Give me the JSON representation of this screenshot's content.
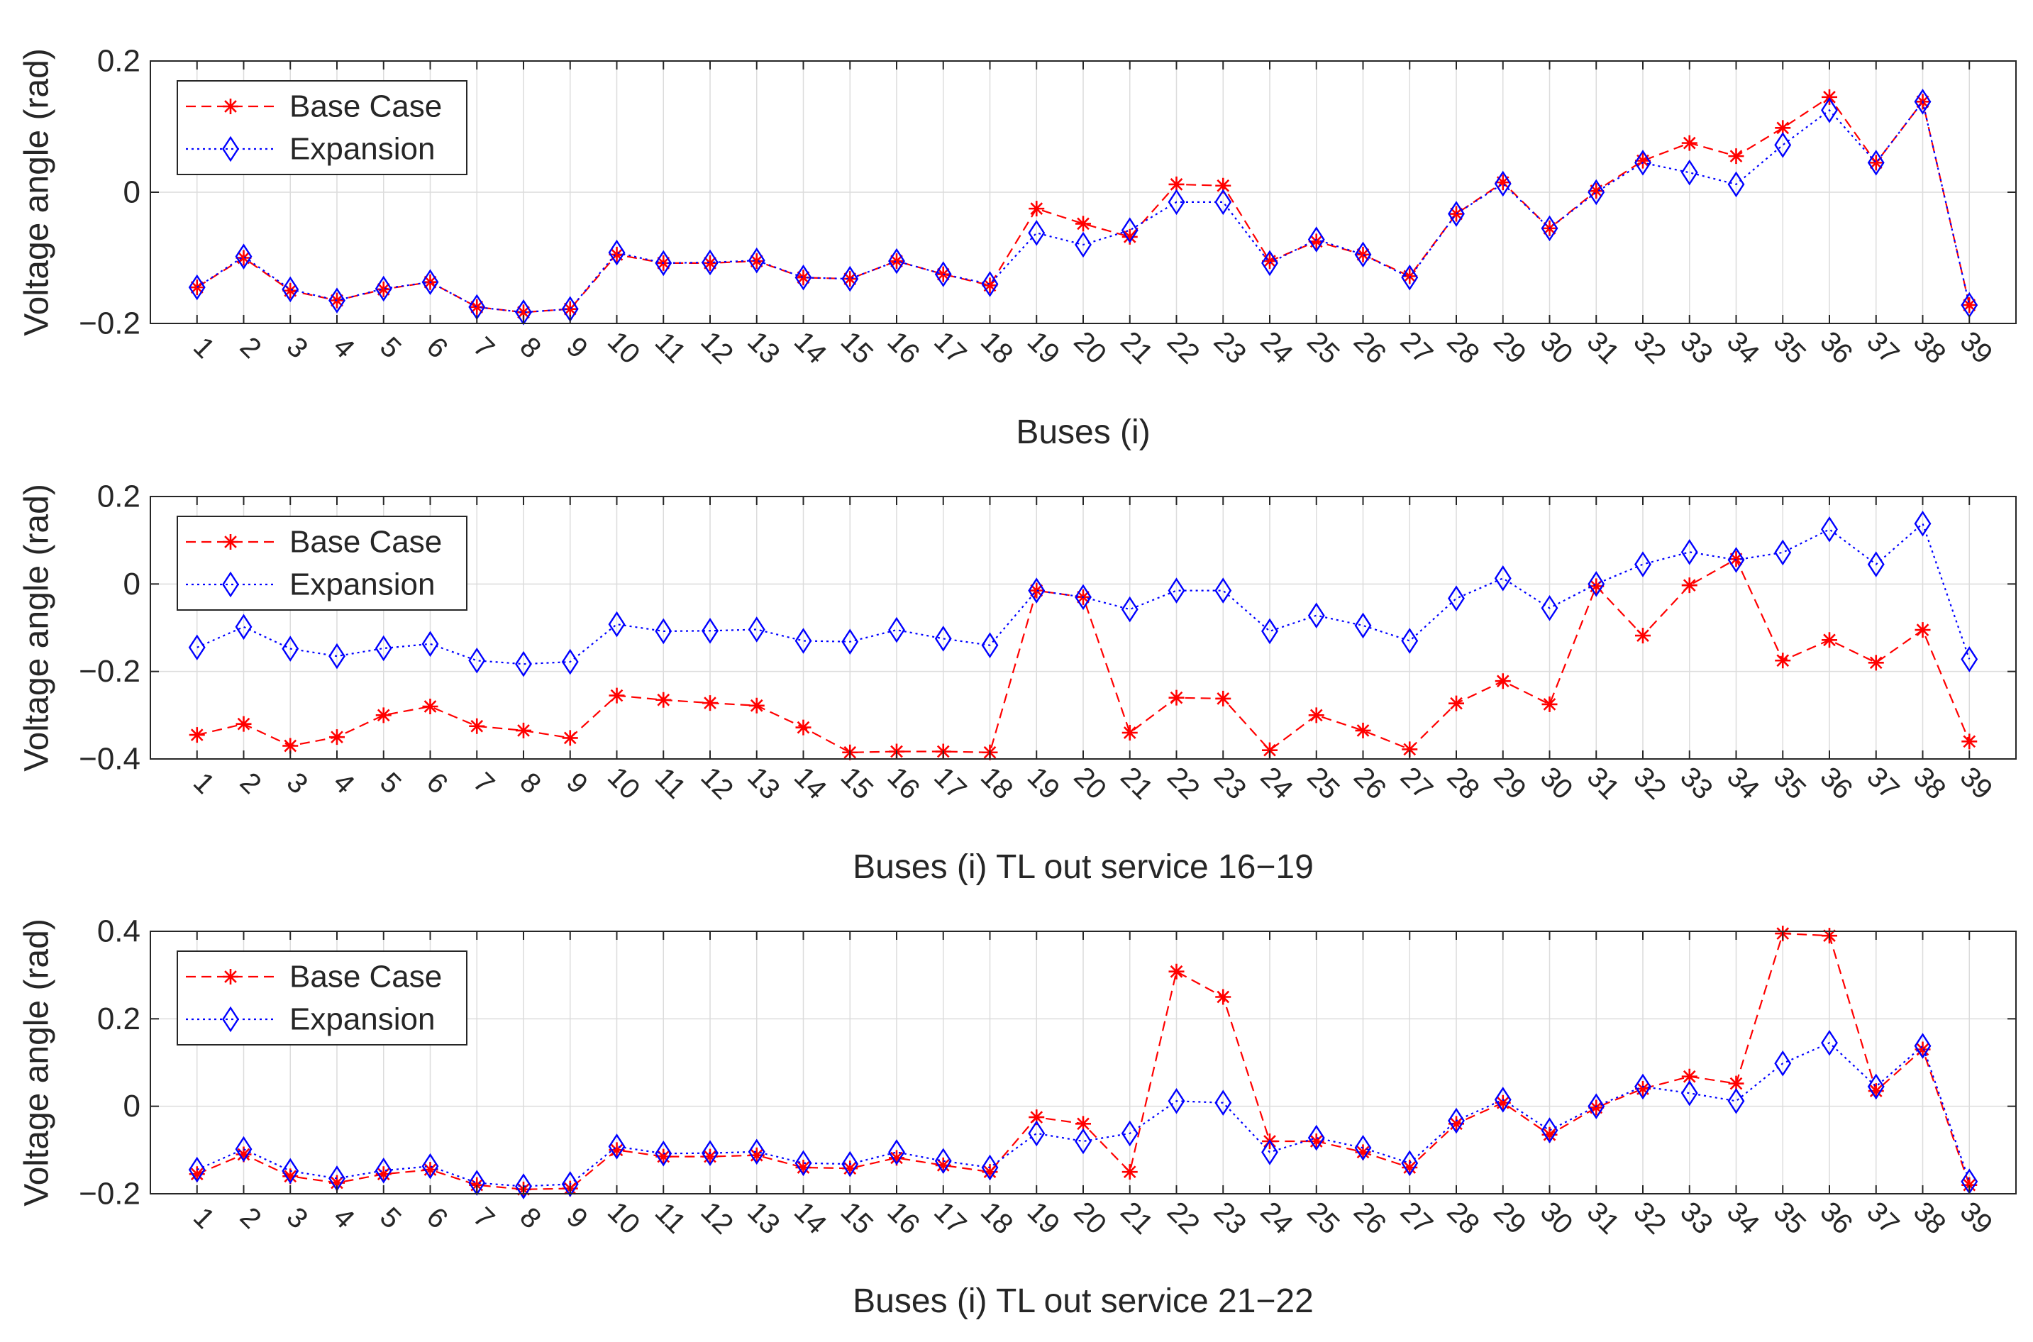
{
  "figure": {
    "legend_labels": [
      "Base Case",
      "Expansion"
    ],
    "colors": {
      "base": "#ff0000",
      "expansion": "#0000ff",
      "axis": "#262626",
      "grid": "#dcdcdc"
    }
  },
  "chart_data": [
    {
      "type": "line",
      "title": "",
      "xlabel": "Buses (i)",
      "ylabel": "Voltage angle (rad)",
      "ylim": [
        -0.2,
        0.2
      ],
      "yticks": [
        "-0.2",
        "0",
        "0.2"
      ],
      "ytick_values": [
        -0.2,
        0,
        0.2
      ],
      "grid": true,
      "legend_position": "top-left",
      "categories": [
        "1",
        "2",
        "3",
        "4",
        "5",
        "6",
        "7",
        "8",
        "9",
        "10",
        "11",
        "12",
        "13",
        "14",
        "15",
        "16",
        "17",
        "18",
        "19",
        "20",
        "21",
        "22",
        "23",
        "24",
        "25",
        "26",
        "27",
        "28",
        "29",
        "30",
        "31",
        "32",
        "33",
        "34",
        "35",
        "36",
        "37",
        "38",
        "39"
      ],
      "series": [
        {
          "name": "Base Case",
          "marker": "asterisk",
          "style": "dashed",
          "values": [
            -0.145,
            -0.1,
            -0.15,
            -0.165,
            -0.148,
            -0.137,
            -0.175,
            -0.183,
            -0.178,
            -0.095,
            -0.108,
            -0.108,
            -0.105,
            -0.13,
            -0.132,
            -0.105,
            -0.125,
            -0.142,
            -0.025,
            -0.048,
            -0.068,
            0.012,
            0.01,
            -0.105,
            -0.075,
            -0.095,
            -0.128,
            -0.033,
            0.015,
            -0.055,
            0.002,
            0.048,
            0.075,
            0.055,
            0.098,
            0.145,
            0.045,
            0.138,
            -0.172
          ]
        },
        {
          "name": "Expansion",
          "marker": "diamond",
          "style": "dotted",
          "values": [
            -0.145,
            -0.098,
            -0.148,
            -0.165,
            -0.147,
            -0.137,
            -0.175,
            -0.183,
            -0.178,
            -0.092,
            -0.108,
            -0.107,
            -0.104,
            -0.13,
            -0.132,
            -0.105,
            -0.125,
            -0.14,
            -0.062,
            -0.08,
            -0.058,
            -0.015,
            -0.015,
            -0.108,
            -0.072,
            -0.095,
            -0.13,
            -0.033,
            0.013,
            -0.055,
            0.0,
            0.045,
            0.03,
            0.012,
            0.072,
            0.125,
            0.045,
            0.138,
            -0.172
          ]
        }
      ]
    },
    {
      "type": "line",
      "title": "",
      "xlabel": "Buses (i) TL out service 16−19",
      "ylabel": "Voltage angle (rad)",
      "ylim": [
        -0.4,
        0.2
      ],
      "yticks": [
        "-0.4",
        "-0.2",
        "0",
        "0.2"
      ],
      "ytick_values": [
        -0.4,
        -0.2,
        0,
        0.2
      ],
      "grid": true,
      "legend_position": "top-left",
      "categories": [
        "1",
        "2",
        "3",
        "4",
        "5",
        "6",
        "7",
        "8",
        "9",
        "10",
        "11",
        "12",
        "13",
        "14",
        "15",
        "16",
        "17",
        "18",
        "19",
        "20",
        "21",
        "22",
        "23",
        "24",
        "25",
        "26",
        "27",
        "28",
        "29",
        "30",
        "31",
        "32",
        "33",
        "34",
        "35",
        "36",
        "37",
        "38",
        "39"
      ],
      "series": [
        {
          "name": "Base Case",
          "marker": "asterisk",
          "style": "dashed",
          "values": [
            -0.345,
            -0.32,
            -0.37,
            -0.35,
            -0.3,
            -0.28,
            -0.325,
            -0.335,
            -0.352,
            -0.255,
            -0.265,
            -0.272,
            -0.278,
            -0.328,
            -0.385,
            -0.383,
            -0.383,
            -0.385,
            -0.015,
            -0.03,
            -0.34,
            -0.26,
            -0.262,
            -0.38,
            -0.3,
            -0.335,
            -0.378,
            -0.273,
            -0.222,
            -0.275,
            -0.005,
            -0.118,
            -0.003,
            0.057,
            -0.175,
            -0.128,
            -0.18,
            -0.105,
            -0.36
          ]
        },
        {
          "name": "Expansion",
          "marker": "diamond",
          "style": "dotted",
          "values": [
            -0.145,
            -0.098,
            -0.148,
            -0.165,
            -0.147,
            -0.137,
            -0.175,
            -0.183,
            -0.178,
            -0.092,
            -0.108,
            -0.107,
            -0.104,
            -0.13,
            -0.132,
            -0.105,
            -0.125,
            -0.14,
            -0.015,
            -0.03,
            -0.058,
            -0.015,
            -0.015,
            -0.108,
            -0.072,
            -0.095,
            -0.13,
            -0.033,
            0.013,
            -0.055,
            0.0,
            0.045,
            0.073,
            0.055,
            0.072,
            0.125,
            0.045,
            0.138,
            -0.172
          ]
        }
      ]
    },
    {
      "type": "line",
      "title": "",
      "xlabel": "Buses (i) TL out service 21−22",
      "ylabel": "Voltage angle (rad)",
      "ylim": [
        -0.2,
        0.4
      ],
      "yticks": [
        "-0.2",
        "0",
        "0.2",
        "0.4"
      ],
      "ytick_values": [
        -0.2,
        0,
        0.2,
        0.4
      ],
      "grid": true,
      "legend_position": "top-left",
      "categories": [
        "1",
        "2",
        "3",
        "4",
        "5",
        "6",
        "7",
        "8",
        "9",
        "10",
        "11",
        "12",
        "13",
        "14",
        "15",
        "16",
        "17",
        "18",
        "19",
        "20",
        "21",
        "22",
        "23",
        "24",
        "25",
        "26",
        "27",
        "28",
        "29",
        "30",
        "31",
        "32",
        "33",
        "34",
        "35",
        "36",
        "37",
        "38",
        "39"
      ],
      "series": [
        {
          "name": "Base Case",
          "marker": "asterisk",
          "style": "dashed",
          "values": [
            -0.155,
            -0.11,
            -0.16,
            -0.175,
            -0.155,
            -0.145,
            -0.18,
            -0.19,
            -0.188,
            -0.1,
            -0.115,
            -0.115,
            -0.112,
            -0.14,
            -0.142,
            -0.118,
            -0.135,
            -0.15,
            -0.025,
            -0.04,
            -0.15,
            0.308,
            0.25,
            -0.08,
            -0.08,
            -0.105,
            -0.14,
            -0.04,
            0.008,
            -0.065,
            -0.003,
            0.04,
            0.068,
            0.052,
            0.395,
            0.39,
            0.035,
            0.13,
            -0.18
          ]
        },
        {
          "name": "Expansion",
          "marker": "diamond",
          "style": "dotted",
          "values": [
            -0.145,
            -0.098,
            -0.148,
            -0.165,
            -0.147,
            -0.137,
            -0.175,
            -0.183,
            -0.178,
            -0.092,
            -0.108,
            -0.107,
            -0.104,
            -0.13,
            -0.132,
            -0.105,
            -0.125,
            -0.14,
            -0.062,
            -0.08,
            -0.062,
            0.012,
            0.008,
            -0.105,
            -0.072,
            -0.095,
            -0.13,
            -0.033,
            0.015,
            -0.055,
            0.0,
            0.045,
            0.03,
            0.012,
            0.098,
            0.145,
            0.045,
            0.138,
            -0.172
          ]
        }
      ]
    }
  ]
}
